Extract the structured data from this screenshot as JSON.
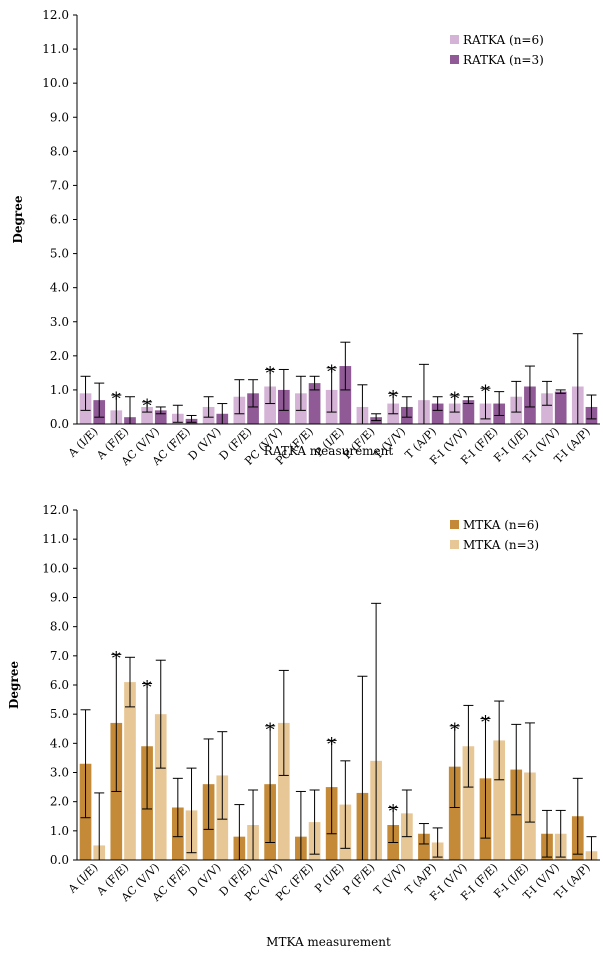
{
  "colors": {
    "ratka_6": "#d4b3d6",
    "ratka_3": "#8f5a96",
    "mtka_6": "#c48a37",
    "mtka_3": "#e8c796",
    "axis": "#000000",
    "error_bar": "#000000"
  },
  "chart_data": [
    {
      "type": "bar",
      "xlabel": "RATKA measurement",
      "ylabel": "Degree",
      "ylim": [
        0,
        12
      ],
      "yticks": [
        "0.0",
        "1.0",
        "2.0",
        "3.0",
        "4.0",
        "5.0",
        "6.0",
        "7.0",
        "8.0",
        "9.0",
        "10.0",
        "11.0",
        "12.0"
      ],
      "categories": [
        "A (I/E)",
        "A (F/E)",
        "AC (V/V)",
        "AC (F/E)",
        "D (V/V)",
        "D (F/E)",
        "PC (V/V)",
        "PC (F/E)",
        "P (I/E)",
        "P (F/E)",
        "T (V/V)",
        "T (A/P)",
        "F-I (V/V)",
        "F-I (F/E)",
        "F-I (I/E)",
        "T-I (V/V)",
        "T-I (A/P)"
      ],
      "legend_position": "top-right",
      "series": [
        {
          "name": "RATKA (n=6)",
          "values": [
            0.9,
            0.4,
            0.5,
            0.3,
            0.5,
            0.8,
            1.1,
            0.9,
            1.0,
            0.5,
            0.6,
            0.7,
            0.6,
            0.6,
            0.8,
            0.9,
            1.1
          ],
          "errors": [
            0.5,
            0.45,
            0.15,
            0.25,
            0.3,
            0.5,
            0.5,
            0.5,
            0.65,
            0.65,
            0.3,
            1.05,
            0.25,
            0.45,
            0.45,
            0.35,
            1.55
          ]
        },
        {
          "name": "RATKA (n=3)",
          "values": [
            0.7,
            0.2,
            0.4,
            0.15,
            0.3,
            0.9,
            1.0,
            1.2,
            1.7,
            0.2,
            0.5,
            0.6,
            0.7,
            0.6,
            1.1,
            0.95,
            0.5
          ],
          "errors": [
            0.5,
            0.6,
            0.1,
            0.1,
            0.3,
            0.4,
            0.6,
            0.2,
            0.7,
            0.1,
            0.3,
            0.2,
            0.1,
            0.35,
            0.6,
            0.05,
            0.35
          ]
        }
      ],
      "significant_markers": [
        {
          "category": "A (F/E)",
          "series": "RATKA (n=6)",
          "label": "*"
        },
        {
          "category": "AC (V/V)",
          "series": "RATKA (n=6)",
          "label": "*"
        },
        {
          "category": "PC (V/V)",
          "series": "RATKA (n=6)",
          "label": "*"
        },
        {
          "category": "P (I/E)",
          "series": "RATKA (n=6)",
          "label": "*"
        },
        {
          "category": "T (V/V)",
          "series": "RATKA (n=6)",
          "label": "*"
        },
        {
          "category": "F-I (V/V)",
          "series": "RATKA (n=6)",
          "label": "*"
        },
        {
          "category": "F-I (F/E)",
          "series": "RATKA (n=6)",
          "label": "*"
        }
      ]
    },
    {
      "type": "bar",
      "xlabel": "MTKA measurement",
      "ylabel": "Degree",
      "ylim": [
        0,
        12
      ],
      "yticks": [
        "0.0",
        "1.0",
        "2.0",
        "3.0",
        "4.0",
        "5.0",
        "6.0",
        "7.0",
        "8.0",
        "9.0",
        "10.0",
        "11.0",
        "12.0"
      ],
      "categories": [
        "A (I/E)",
        "A (F/E)",
        "AC (V/V)",
        "AC (F/E)",
        "D (V/V)",
        "D (F/E)",
        "PC (V/V)",
        "PC (F/E)",
        "P (I/E)",
        "P (F/E)",
        "T (V/V)",
        "T (A/P)",
        "F-I (V/V)",
        "F-I (F/E)",
        "F-I (I/E)",
        "T-I (V/V)",
        "T-I (A/P)"
      ],
      "legend_position": "top-right",
      "series": [
        {
          "name": "MTKA (n=6)",
          "values": [
            3.3,
            4.7,
            3.9,
            1.8,
            2.6,
            0.8,
            2.6,
            0.8,
            2.5,
            2.3,
            1.2,
            0.9,
            3.2,
            2.8,
            3.1,
            0.9,
            1.5
          ],
          "errors": [
            1.85,
            2.35,
            2.15,
            1.0,
            1.55,
            1.1,
            2.0,
            1.55,
            1.6,
            4.0,
            0.6,
            0.35,
            1.4,
            2.05,
            1.55,
            0.8,
            1.3
          ]
        },
        {
          "name": "MTKA (n=3)",
          "values": [
            0.5,
            6.1,
            5.0,
            1.7,
            2.9,
            1.2,
            4.7,
            1.3,
            1.9,
            3.4,
            1.6,
            0.6,
            3.9,
            4.1,
            3.0,
            0.9,
            0.3
          ],
          "errors": [
            1.8,
            0.85,
            1.85,
            1.45,
            1.5,
            1.2,
            1.8,
            1.1,
            1.5,
            5.4,
            0.8,
            0.5,
            1.4,
            1.35,
            1.7,
            0.8,
            0.5
          ]
        }
      ],
      "significant_markers": [
        {
          "category": "A (F/E)",
          "series": "MTKA (n=6)",
          "label": "*"
        },
        {
          "category": "AC (V/V)",
          "series": "MTKA (n=6)",
          "label": "*"
        },
        {
          "category": "PC (V/V)",
          "series": "MTKA (n=6)",
          "label": "*"
        },
        {
          "category": "P (I/E)",
          "series": "MTKA (n=6)",
          "label": "*"
        },
        {
          "category": "T (V/V)",
          "series": "MTKA (n=6)",
          "label": "*"
        },
        {
          "category": "F-I (V/V)",
          "series": "MTKA (n=6)",
          "label": "*"
        },
        {
          "category": "F-I (F/E)",
          "series": "MTKA (n=6)",
          "label": "*"
        }
      ]
    }
  ]
}
